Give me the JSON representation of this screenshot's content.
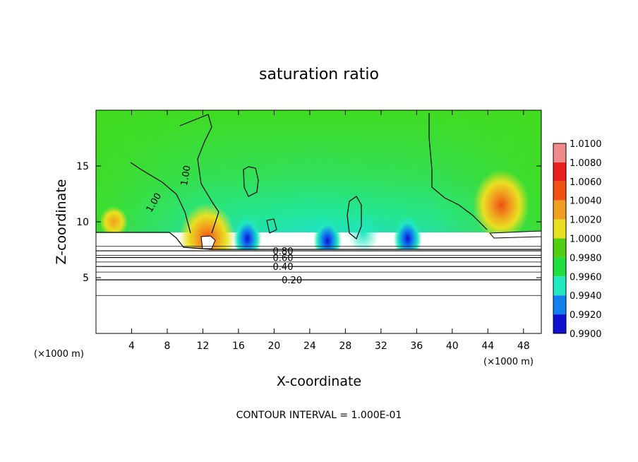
{
  "chart_data": {
    "type": "heatmap",
    "title": "saturation ratio",
    "xlabel": "X-coordinate",
    "ylabel": "Z-coordinate",
    "x_unit_left": "(×1000 m)",
    "x_unit_right": "(×1000 m)",
    "xlim": [
      0,
      50
    ],
    "ylim": [
      0,
      20
    ],
    "x_ticks": [
      {
        "value": 4,
        "label": "4"
      },
      {
        "value": 8,
        "label": "8"
      },
      {
        "value": 12,
        "label": "12"
      },
      {
        "value": 16,
        "label": "16"
      },
      {
        "value": 20,
        "label": "20"
      },
      {
        "value": 24,
        "label": "24"
      },
      {
        "value": 28,
        "label": "28"
      },
      {
        "value": 32,
        "label": "32"
      },
      {
        "value": 36,
        "label": "36"
      },
      {
        "value": 40,
        "label": "40"
      },
      {
        "value": 44,
        "label": "44"
      },
      {
        "value": 48,
        "label": "48"
      }
    ],
    "y_ticks": [
      {
        "value": 5,
        "label": "5"
      },
      {
        "value": 10,
        "label": "10"
      },
      {
        "value": 15,
        "label": "15"
      }
    ],
    "colorbar": {
      "labels": [
        "1.0100",
        "1.0080",
        "1.0060",
        "1.0040",
        "1.0020",
        "1.0000",
        "0.9980",
        "0.9960",
        "0.9940",
        "0.9920",
        "0.9900"
      ],
      "colors": [
        "#f08a8a",
        "#e82020",
        "#f05010",
        "#f0a020",
        "#e8e020",
        "#50d010",
        "#20e040",
        "#20e8c0",
        "#1080f0",
        "#1010d0",
        "#8010a0"
      ]
    },
    "contours": [
      {
        "value": 0.2,
        "label": "0.20",
        "z": 4.8
      },
      {
        "value": 0.4,
        "label": "0.40",
        "z": 6.0
      },
      {
        "value": 0.6,
        "label": "0.60",
        "z": 6.8
      },
      {
        "value": 0.8,
        "label": "0.80",
        "z": 7.4
      },
      {
        "value": 1.0,
        "label": "1.00",
        "z": 13.5
      }
    ],
    "hotspots": [
      {
        "x": 45.5,
        "z": 11.5,
        "value": 1.005
      },
      {
        "x": 12.5,
        "z": 8.5,
        "value": 1.004
      },
      {
        "x": 2.0,
        "z": 10.0,
        "value": 1.003
      },
      {
        "x": 17.0,
        "z": 8.5,
        "value": 0.994
      },
      {
        "x": 26.0,
        "z": 8.3,
        "value": 0.994
      },
      {
        "x": 35.0,
        "z": 8.5,
        "value": 0.994
      },
      {
        "x": 30.0,
        "z": 9.0,
        "value": 0.997
      }
    ],
    "footer": "CONTOUR INTERVAL = 1.000E-01"
  }
}
